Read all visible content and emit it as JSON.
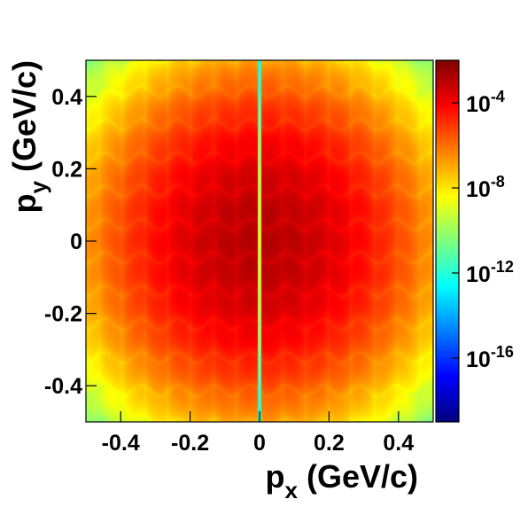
{
  "chart_data": {
    "type": "heatmap",
    "title": "",
    "xlabel": {
      "main": "p",
      "sub": "x",
      "unit": " (GeV/c)"
    },
    "ylabel": {
      "main": "p",
      "sub": "y",
      "unit": " (GeV/c)"
    },
    "xlim": [
      -0.5,
      0.5
    ],
    "ylim": [
      -0.5,
      0.5
    ],
    "x_ticks": [
      {
        "value": -0.4,
        "label": "-0.4"
      },
      {
        "value": -0.2,
        "label": "-0.2"
      },
      {
        "value": 0,
        "label": "0"
      },
      {
        "value": 0.2,
        "label": "0.2"
      },
      {
        "value": 0.4,
        "label": "0.4"
      }
    ],
    "y_ticks": [
      {
        "value": 0.4,
        "label": "0.4"
      },
      {
        "value": 0.2,
        "label": "0.2"
      },
      {
        "value": 0,
        "label": "0"
      },
      {
        "value": -0.2,
        "label": "-0.2"
      },
      {
        "value": -0.4,
        "label": "-0.4"
      }
    ],
    "colorbar": {
      "scale": "log",
      "range": [
        1e-19,
        0.01
      ],
      "ticks": [
        {
          "value": 0.0001,
          "base": "10",
          "exp": "-4"
        },
        {
          "value": 1e-08,
          "base": "10",
          "exp": "-8"
        },
        {
          "value": 1e-12,
          "base": "10",
          "exp": "-12"
        },
        {
          "value": 1e-16,
          "base": "10",
          "exp": "-16"
        }
      ],
      "colormap": [
        "#00007f",
        "#0000ff",
        "#007fff",
        "#00ffff",
        "#7fff7f",
        "#ffff00",
        "#ff7f00",
        "#ff0000",
        "#7f0000"
      ]
    },
    "grid": false
  }
}
